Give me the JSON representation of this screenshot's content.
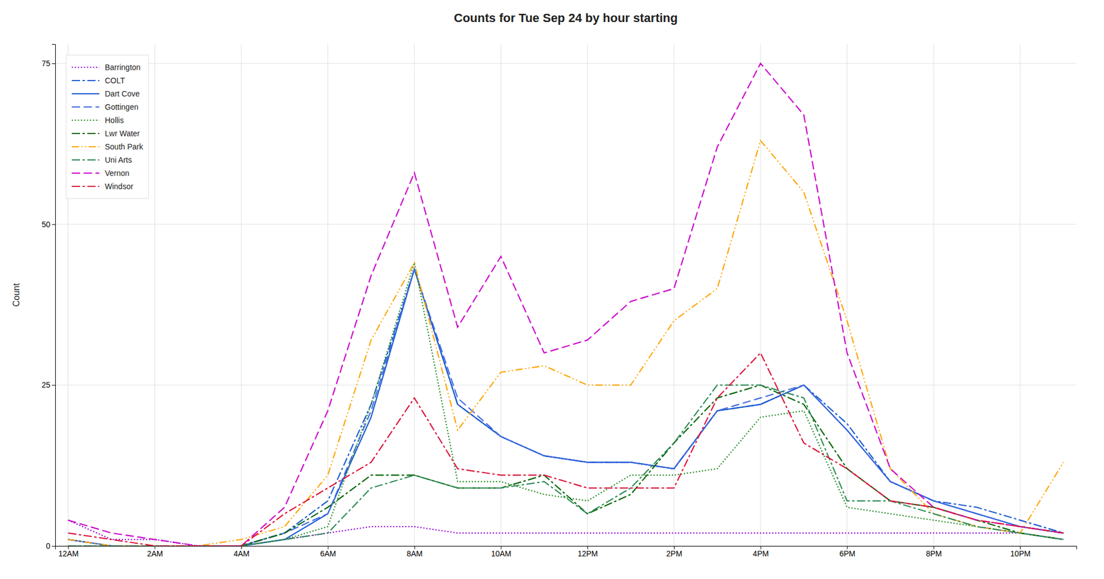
{
  "chart_data": {
    "type": "line",
    "title": "Counts for Tue Sep 24 by hour starting",
    "ylabel": "Count",
    "x": [
      0,
      1,
      2,
      3,
      4,
      5,
      6,
      7,
      8,
      9,
      10,
      11,
      12,
      13,
      14,
      15,
      16,
      17,
      18,
      19,
      20,
      21,
      22,
      23
    ],
    "xlim": [
      -0.3,
      23.3
    ],
    "xticks": [
      {
        "value": 0,
        "label": "12AM"
      },
      {
        "value": 2,
        "label": "2AM"
      },
      {
        "value": 4,
        "label": "4AM"
      },
      {
        "value": 6,
        "label": "6AM"
      },
      {
        "value": 8,
        "label": "8AM"
      },
      {
        "value": 10,
        "label": "10AM"
      },
      {
        "value": 12,
        "label": "12PM"
      },
      {
        "value": 14,
        "label": "2PM"
      },
      {
        "value": 16,
        "label": "4PM"
      },
      {
        "value": 18,
        "label": "6PM"
      },
      {
        "value": 20,
        "label": "8PM"
      },
      {
        "value": 22,
        "label": "10PM"
      }
    ],
    "ylim": [
      0,
      78
    ],
    "yticks": [
      0,
      25,
      50,
      75
    ],
    "grid": true,
    "legend": "upper left",
    "series": [
      {
        "name": "Barrington",
        "color": "#9400D3",
        "line_style": "dotted",
        "values": [
          4,
          1,
          1,
          0,
          0,
          1,
          2,
          3,
          3,
          2,
          2,
          2,
          2,
          2,
          2,
          2,
          2,
          2,
          2,
          2,
          2,
          2,
          2,
          1
        ]
      },
      {
        "name": "COLT",
        "color": "#1A5BD1",
        "line_style": "dashdot",
        "values": [
          1,
          0,
          0,
          0,
          0,
          2,
          7,
          22,
          43,
          22,
          17,
          14,
          13,
          13,
          12,
          21,
          22,
          25,
          19,
          10,
          7,
          6,
          4,
          2
        ]
      },
      {
        "name": "Dart Cove",
        "color": "#1A5BD1",
        "line_style": "solid",
        "values": [
          1,
          0,
          0,
          0,
          0,
          1,
          5,
          20,
          43,
          22,
          17,
          14,
          13,
          13,
          12,
          21,
          22,
          25,
          18,
          10,
          7,
          5,
          3,
          2
        ]
      },
      {
        "name": "Gottingen",
        "color": "#4169E1",
        "line_style": "dashed",
        "values": [
          1,
          0,
          0,
          0,
          0,
          2,
          5,
          21,
          43,
          23,
          17,
          14,
          13,
          13,
          12,
          21,
          23,
          25,
          18,
          10,
          7,
          5,
          3,
          2
        ]
      },
      {
        "name": "Hollis",
        "color": "#228B22",
        "line_style": "dotted",
        "values": [
          0,
          0,
          0,
          0,
          0,
          1,
          3,
          22,
          44,
          10,
          10,
          8,
          7,
          11,
          11,
          12,
          20,
          21,
          6,
          5,
          4,
          3,
          2,
          1
        ]
      },
      {
        "name": "Lwr Water",
        "color": "#006400",
        "line_style": "dashdot",
        "values": [
          0,
          0,
          0,
          0,
          0,
          2,
          6,
          11,
          11,
          9,
          9,
          11,
          5,
          8,
          16,
          23,
          25,
          22,
          12,
          7,
          6,
          4,
          2,
          1
        ]
      },
      {
        "name": "South Park",
        "color": "#FFA500",
        "line_style": "dashdotdot",
        "values": [
          1,
          0,
          0,
          0,
          1,
          3,
          11,
          32,
          44,
          18,
          27,
          28,
          25,
          25,
          35,
          40,
          63,
          55,
          35,
          12,
          5,
          3,
          2,
          13
        ]
      },
      {
        "name": "Uni Arts",
        "color": "#2E8B57",
        "line_style": "dashdot",
        "values": [
          0,
          0,
          0,
          0,
          0,
          1,
          2,
          9,
          11,
          9,
          9,
          10,
          5,
          9,
          16,
          25,
          25,
          23,
          7,
          7,
          5,
          3,
          2,
          1
        ]
      },
      {
        "name": "Vernon",
        "color": "#CC00CC",
        "line_style": "dashed",
        "values": [
          4,
          2,
          1,
          0,
          0,
          6,
          21,
          42,
          58,
          34,
          45,
          30,
          32,
          38,
          40,
          62,
          75,
          67,
          30,
          12,
          6,
          4,
          3,
          2
        ]
      },
      {
        "name": "Windsor",
        "color": "#DC143C",
        "line_style": "dashdot",
        "values": [
          2,
          1,
          0,
          0,
          0,
          5,
          9,
          13,
          23,
          12,
          11,
          11,
          9,
          9,
          9,
          23,
          30,
          16,
          12,
          7,
          6,
          4,
          3,
          2
        ]
      }
    ]
  }
}
